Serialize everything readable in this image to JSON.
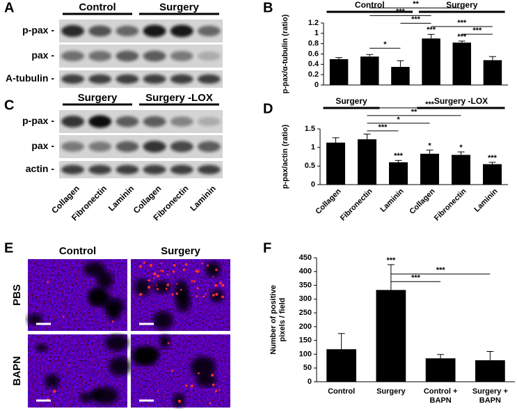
{
  "panels": {
    "A": {
      "label": "A",
      "groups": [
        "Control",
        "Surgery"
      ],
      "rows": [
        "p-pax -",
        "pax -",
        "A-tubulin -"
      ]
    },
    "C": {
      "label": "C",
      "groups": [
        "Surgery",
        "Surgery -LOX"
      ],
      "rows": [
        "p-pax -",
        "pax -",
        "actin -"
      ],
      "lanes": [
        "Collagen",
        "Fibronectin",
        "Laminin",
        "Collagen",
        "Fibronectin",
        "Laminin"
      ]
    },
    "E": {
      "label": "E",
      "columns": [
        "Control",
        "Surgery"
      ],
      "rows": [
        "PBS",
        "BAPN"
      ]
    }
  },
  "chart_data": [
    {
      "panel": "B",
      "type": "bar",
      "ylabel": "p-pax/α-tubulin (ratio)",
      "categories": [
        null,
        null,
        null,
        null,
        null,
        null
      ],
      "values": [
        0.5,
        0.55,
        0.35,
        0.9,
        0.82,
        0.48
      ],
      "errors": [
        0.03,
        0.04,
        0.12,
        0.08,
        0.03,
        0.07
      ],
      "color": "#000000",
      "ylim": [
        0,
        1.2
      ],
      "yticks": [
        0,
        0.2,
        0.4,
        0.6,
        0.8,
        1,
        1.2
      ],
      "groups": [
        {
          "label": "Control",
          "from": 0,
          "to": 2
        },
        {
          "label": "Surgery",
          "from": 3,
          "to": 5
        }
      ],
      "brackets": [
        {
          "label": "*",
          "from": 1,
          "to": 2
        },
        {
          "label": "***",
          "from": 2,
          "to": 3
        },
        {
          "label": "***",
          "from": 4,
          "to": 5
        },
        {
          "label": "***",
          "from": 1,
          "to": 3
        },
        {
          "label": "***",
          "from": 3,
          "to": 5
        },
        {
          "label": "**",
          "from": 1,
          "to": 4
        }
      ],
      "bar_labels": [
        {
          "index": 3,
          "label": "***"
        },
        {
          "index": 4,
          "label": "***"
        }
      ]
    },
    {
      "panel": "D",
      "type": "bar",
      "ylabel": "p-pax/actin (ratio)",
      "categories": [
        "Collagen",
        "Fibronectin",
        "Laminin",
        "Collagen",
        "Fibronectin",
        "Laminin"
      ],
      "values": [
        1.13,
        1.22,
        0.6,
        0.83,
        0.8,
        0.55
      ],
      "errors": [
        0.13,
        0.14,
        0.05,
        0.1,
        0.08,
        0.05
      ],
      "color": "#000000",
      "ylim": [
        0,
        1.5
      ],
      "yticks": [
        0,
        0.5,
        1,
        1.5
      ],
      "groups": [
        {
          "label": "Surgery",
          "from": 0,
          "to": 1
        },
        {
          "label": "Surgery -LOX",
          "from": 3,
          "to": 5
        }
      ],
      "brackets": [
        {
          "label": "***",
          "from": 1,
          "to": 2
        },
        {
          "label": "*",
          "from": 1,
          "to": 3
        },
        {
          "label": "**",
          "from": 1,
          "to": 4
        },
        {
          "label": "***",
          "from": 1,
          "to": 5
        }
      ],
      "bar_labels": [
        {
          "index": 2,
          "label": "***"
        },
        {
          "index": 3,
          "label": "*"
        },
        {
          "index": 4,
          "label": "*"
        },
        {
          "index": 5,
          "label": "***"
        }
      ]
    },
    {
      "panel": "F",
      "type": "bar",
      "ylabel": "Number of positive pixels / field",
      "categories": [
        "Control",
        "Surgery",
        "Control + BAPN",
        "Surgery + BAPN"
      ],
      "values": [
        118,
        333,
        85,
        78
      ],
      "errors": [
        57,
        92,
        14,
        32
      ],
      "color": "#000000",
      "ylim": [
        0,
        450
      ],
      "yticks": [
        0,
        50,
        100,
        150,
        200,
        250,
        300,
        350,
        400,
        450
      ],
      "groups": [],
      "brackets": [
        {
          "label": "***",
          "from": 1,
          "to": 2
        },
        {
          "label": "***",
          "from": 1,
          "to": 3
        }
      ],
      "bar_labels": [
        {
          "index": 1,
          "label": "***"
        }
      ]
    }
  ]
}
